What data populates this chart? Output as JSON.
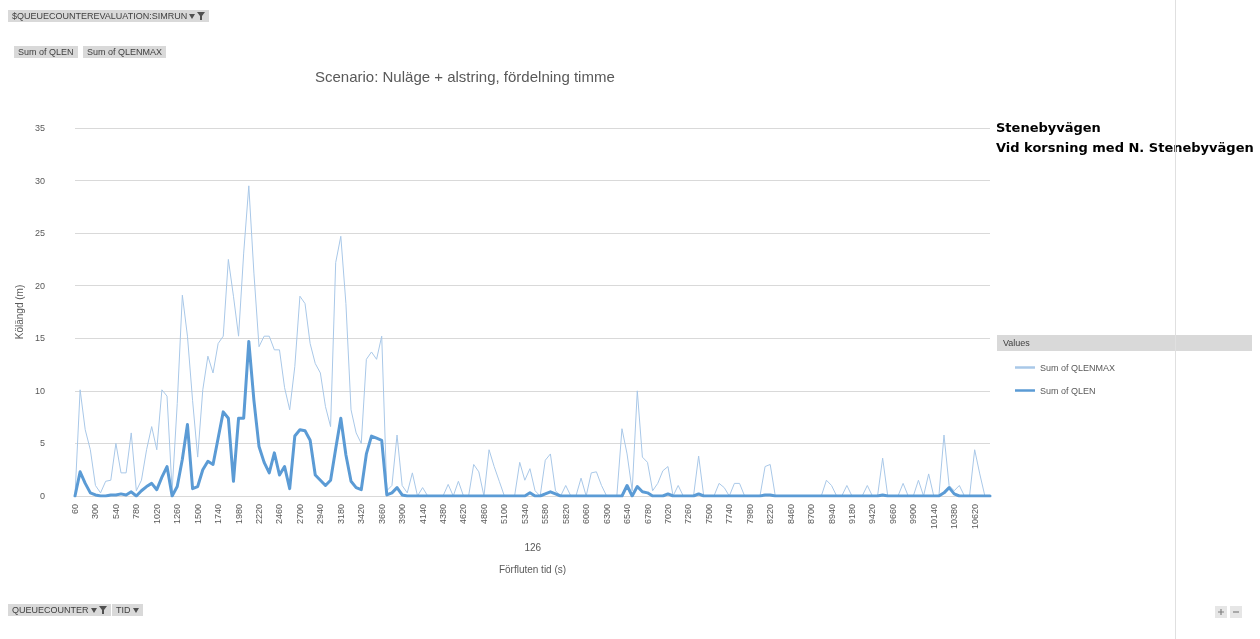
{
  "chart_data": {
    "type": "line",
    "title": "Scenario: Nuläge + alstring, fördelning timme",
    "xlabel": "Förfluten tid (s)",
    "ylabel": "Kölängd (m)",
    "legend_title": "Values",
    "annotations": [
      "Stenebyvägen",
      "Vid korsning med N. Stenebyvägen",
      "126",
      "$QUEUECOUNTEREVALUATION:SIMRUN",
      "Sum of QLEN",
      "Sum of QLENMAX",
      "QUEUECOUNTER",
      "TID"
    ],
    "categories": [
      "60",
      null,
      null,
      null,
      "300",
      null,
      null,
      null,
      "540",
      null,
      null,
      null,
      "780",
      null,
      null,
      null,
      "1020",
      null,
      null,
      null,
      "1260",
      null,
      null,
      null,
      "1500",
      null,
      null,
      null,
      "1740",
      null,
      null,
      null,
      "1980",
      null,
      null,
      null,
      "2220",
      null,
      null,
      null,
      "2460",
      null,
      null,
      null,
      "2700",
      null,
      null,
      null,
      "2940",
      null,
      null,
      null,
      "3180",
      null,
      null,
      null,
      "3420",
      null,
      null,
      null,
      "3660",
      null,
      null,
      null,
      "3900",
      null,
      null,
      null,
      "4140",
      null,
      null,
      null,
      "4380",
      null,
      null,
      null,
      "4620",
      null,
      null,
      null,
      "4860",
      null,
      null,
      null,
      "5100",
      null,
      null,
      null,
      "5340",
      null,
      null,
      null,
      "5580",
      null,
      null,
      null,
      "5820",
      null,
      null,
      null,
      "6060",
      null,
      null,
      null,
      "6300",
      null,
      null,
      null,
      "6540",
      null,
      null,
      null,
      "6780",
      null,
      null,
      null,
      "7020",
      null,
      null,
      null,
      "7260",
      null,
      null,
      null,
      "7500",
      null,
      null,
      null,
      "7740",
      null,
      null,
      null,
      "7980",
      null,
      null,
      null,
      "8220",
      null,
      null,
      null,
      "8460",
      null,
      null,
      null,
      "8700",
      null,
      null,
      null,
      "8940",
      null,
      null,
      null,
      "9180",
      null,
      null,
      null,
      "9420",
      null,
      null,
      null,
      "9660",
      null,
      null,
      null,
      "9900",
      null,
      null,
      null,
      "10140",
      null,
      null,
      null,
      "10380",
      null,
      null,
      null,
      "10620",
      null,
      null,
      null
    ],
    "series": [
      {
        "name": "Sum of QLENMAX",
        "color": "#a9c8e8",
        "values": [
          0,
          10.1,
          6.3,
          4.4,
          1,
          0.3,
          1.4,
          1.5,
          5,
          2.2,
          2.2,
          6,
          0.5,
          1.5,
          4.4,
          6.6,
          4.4,
          10.1,
          9.5,
          0.5,
          8.8,
          19.1,
          15.2,
          9.1,
          3.7,
          10.1,
          13.3,
          11.7,
          14.5,
          15.2,
          22.5,
          19,
          15.2,
          23.1,
          29.5,
          21.2,
          14.2,
          15.2,
          15.2,
          13.9,
          13.9,
          10.3,
          8.2,
          12.3,
          19,
          18.3,
          14.5,
          12.6,
          11.7,
          8.5,
          6.6,
          22.2,
          24.7,
          18.3,
          8.2,
          6,
          5,
          13,
          13.7,
          13,
          15.2,
          0.5,
          1,
          5.8,
          1,
          0.3,
          2.2,
          0,
          0.8,
          0,
          0,
          0,
          0,
          1.1,
          0,
          1.4,
          0,
          0,
          3,
          2.3,
          0,
          4.4,
          2.8,
          1.4,
          0,
          0,
          0,
          3.2,
          1.5,
          2.6,
          0.5,
          0,
          3.4,
          4,
          0.5,
          0,
          1,
          0,
          0,
          1.7,
          0,
          2.2,
          2.3,
          1,
          0,
          0,
          0,
          6.4,
          4,
          0.5,
          10,
          3.7,
          3.2,
          0.5,
          1.2,
          2.4,
          2.8,
          0,
          1,
          0,
          0,
          0,
          3.8,
          0,
          0,
          0,
          1.2,
          0.8,
          0,
          1.2,
          1.2,
          0,
          0,
          0,
          0,
          2.8,
          3,
          0,
          0,
          0,
          0,
          0,
          0,
          0,
          0,
          0,
          0,
          1.5,
          1,
          0,
          0,
          1,
          0,
          0,
          0,
          1,
          0,
          0,
          3.6,
          0,
          0,
          0,
          1.2,
          0,
          0,
          1.5,
          0,
          2.1,
          0,
          0,
          5.8,
          1,
          0.5,
          1,
          0,
          0,
          4.4,
          2.1,
          0,
          0
        ]
      },
      {
        "name": "Sum of QLEN",
        "color": "#5b9bd5",
        "values": [
          0,
          2.3,
          1.2,
          0.3,
          0.1,
          0,
          0,
          0.1,
          0.1,
          0.2,
          0.1,
          0.4,
          0,
          0.5,
          0.9,
          1.2,
          0.6,
          1.8,
          2.8,
          0,
          0.9,
          3.5,
          6.8,
          0.7,
          0.9,
          2.5,
          3.3,
          3,
          5.5,
          8,
          7.4,
          1.4,
          7.4,
          7.4,
          14.7,
          9.1,
          4.7,
          3.2,
          2.2,
          4.1,
          2,
          2.8,
          0.7,
          5.7,
          6.3,
          6.2,
          5.3,
          2,
          1.5,
          1,
          1.5,
          4.5,
          7.4,
          3.9,
          1.4,
          0.8,
          0.6,
          4,
          5.7,
          5.5,
          5.3,
          0.1,
          0.3,
          0.8,
          0.1,
          0,
          0,
          0,
          0,
          0,
          0,
          0,
          0,
          0,
          0,
          0,
          0,
          0,
          0,
          0,
          0,
          0,
          0,
          0,
          0,
          0,
          0,
          0,
          0,
          0.3,
          0,
          0,
          0.2,
          0.4,
          0.2,
          0,
          0,
          0,
          0,
          0,
          0,
          0,
          0,
          0,
          0,
          0,
          0,
          0,
          1,
          0,
          0.9,
          0.4,
          0.3,
          0,
          0,
          0,
          0.2,
          0,
          0,
          0,
          0,
          0,
          0.2,
          0,
          0,
          0,
          0,
          0,
          0,
          0,
          0,
          0,
          0,
          0,
          0,
          0.1,
          0.1,
          0,
          0,
          0,
          0,
          0,
          0,
          0,
          0,
          0,
          0,
          0,
          0,
          0,
          0,
          0,
          0,
          0,
          0,
          0,
          0,
          0,
          0.1,
          0,
          0,
          0,
          0,
          0,
          0,
          0,
          0,
          0,
          0,
          0,
          0.3,
          0.8,
          0.2,
          0,
          0,
          0,
          0,
          0,
          0,
          0
        ]
      }
    ],
    "ylim": [
      0,
      35
    ],
    "yticks": [
      0,
      5,
      10,
      15,
      20,
      25,
      30,
      35
    ],
    "grid": "y",
    "legend": "right",
    "marker": "none",
    "line_style": "solid"
  }
}
